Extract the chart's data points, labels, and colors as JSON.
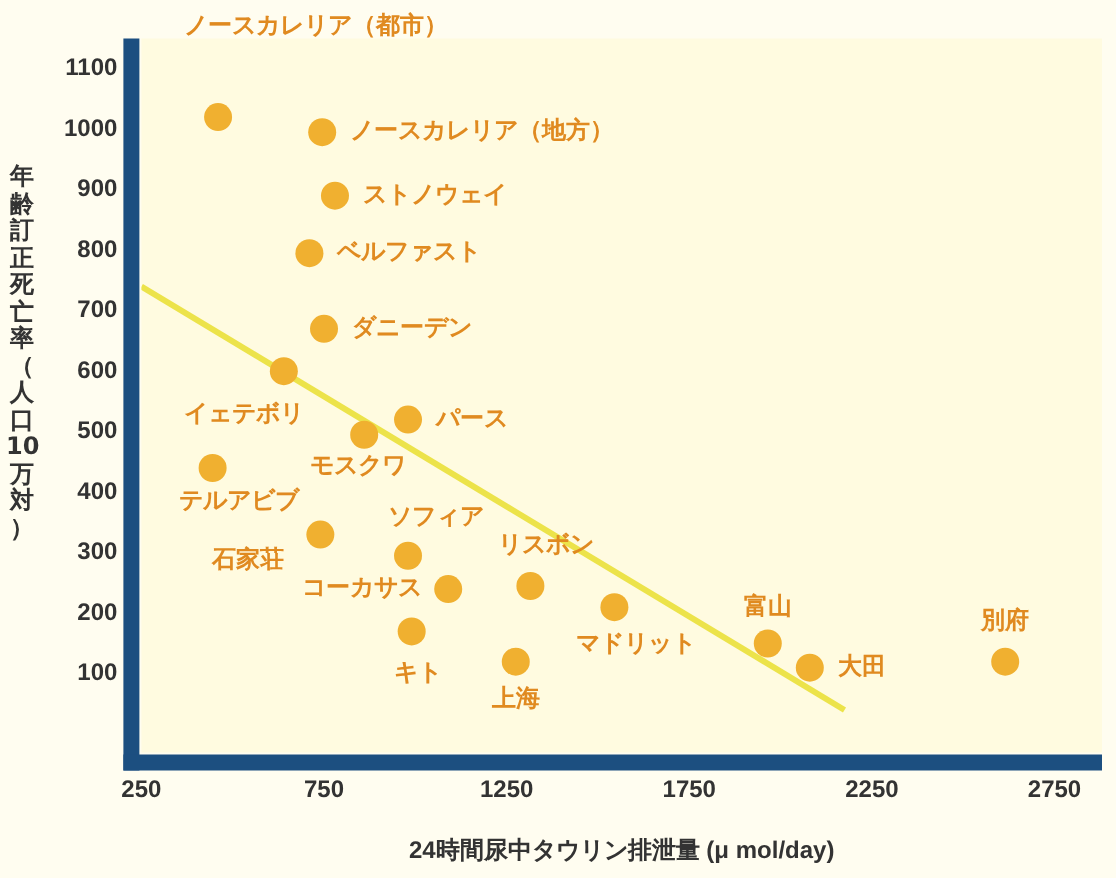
{
  "chart_data": {
    "type": "scatter",
    "xlabel": "24時間尿中タウリン排泄量 (μ mol/day)",
    "ylabel": "年齢訂正死亡率（人口10万対）",
    "xlim": [
      250,
      2880
    ],
    "xticks": [
      250,
      750,
      1250,
      1750,
      2250,
      2750
    ],
    "ylim": [
      -30,
      1150
    ],
    "yticks": [
      100,
      200,
      300,
      400,
      500,
      600,
      700,
      800,
      900,
      1000,
      1100
    ],
    "grid": false,
    "legend": false,
    "marker": "circle",
    "series": [
      {
        "name": "ノースカレリア（都市）",
        "color": "#f0b030",
        "x": [
          460
        ],
        "values": [
          1020
        ]
      },
      {
        "name": "ノースカレリア（地方）",
        "color": "#f0b030",
        "x": [
          745
        ],
        "values": [
          995
        ]
      },
      {
        "name": "ストノウェイ",
        "color": "#f0b030",
        "x": [
          780
        ],
        "values": [
          890
        ]
      },
      {
        "name": "ベルファスト",
        "color": "#f0b030",
        "x": [
          710
        ],
        "values": [
          795
        ]
      },
      {
        "name": "ダニーデン",
        "color": "#f0b030",
        "x": [
          750
        ],
        "values": [
          670
        ]
      },
      {
        "name": "イェテボリ",
        "color": "#f0b030",
        "x": [
          640
        ],
        "values": [
          600
        ]
      },
      {
        "name": "モスクワ",
        "color": "#f0b030",
        "x": [
          860
        ],
        "values": [
          495
        ]
      },
      {
        "name": "パース",
        "color": "#f0b030",
        "x": [
          980
        ],
        "values": [
          520
        ]
      },
      {
        "name": "テルアビブ",
        "color": "#f0b030",
        "x": [
          445
        ],
        "values": [
          440
        ]
      },
      {
        "name": "石家荘",
        "color": "#f0b030",
        "x": [
          740
        ],
        "values": [
          330
        ]
      },
      {
        "name": "ソフィア",
        "color": "#f0b030",
        "x": [
          980
        ],
        "values": [
          295
        ]
      },
      {
        "name": "コーカサス",
        "color": "#f0b030",
        "x": [
          1090
        ],
        "values": [
          240
        ]
      },
      {
        "name": "キト",
        "color": "#f0b030",
        "x": [
          990
        ],
        "values": [
          170
        ]
      },
      {
        "name": "上海",
        "color": "#f0b030",
        "x": [
          1275
        ],
        "values": [
          120
        ]
      },
      {
        "name": "リスボン",
        "color": "#f0b030",
        "x": [
          1315
        ],
        "values": [
          245
        ]
      },
      {
        "name": "マドリット",
        "color": "#f0b030",
        "x": [
          1545
        ],
        "values": [
          210
        ]
      },
      {
        "name": "富山",
        "color": "#f0b030",
        "x": [
          1965
        ],
        "values": [
          150
        ]
      },
      {
        "name": "大田",
        "color": "#f0b030",
        "x": [
          2080
        ],
        "values": [
          110
        ]
      },
      {
        "name": "別府",
        "color": "#f0b030",
        "x": [
          2615
        ],
        "values": [
          120
        ]
      },
      {
        "type": "line",
        "marker": "none",
        "color": "#ece34a",
        "x": [
          250,
          2175
        ],
        "values": [
          740,
          40
        ]
      }
    ]
  }
}
